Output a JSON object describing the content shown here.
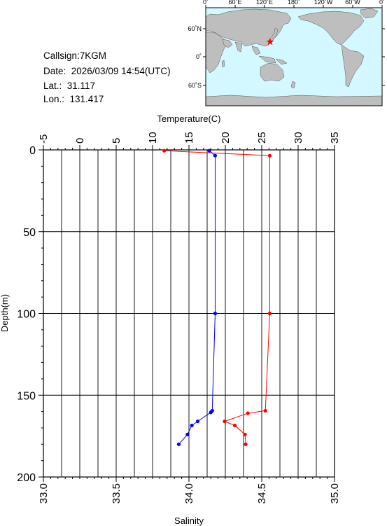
{
  "info": {
    "callsign": "Callsign:7KGM",
    "date": "Date:  2026/03/09 14:54(UTC)",
    "lat": "Lat.:  31.117",
    "lon": "Lon.:  131.417"
  },
  "map": {
    "top_ticks": [
      "0˚",
      "60˚E",
      "120˚E",
      "180˚",
      "120˚W",
      "60˚W",
      "0˚"
    ],
    "lat_ticks": [
      "60˚N",
      "0˚",
      "60˚S"
    ],
    "station_marker": "red-star",
    "colors": {
      "ocean": "#d4f8ff",
      "land": "#bebebe",
      "marker": "#ff0000"
    }
  },
  "chart_data": {
    "type": "line",
    "title": "",
    "ylabel": "Depth(m)",
    "ylim": [
      0,
      200
    ],
    "y_inverted": true,
    "yticks": [
      "0",
      "50",
      "100",
      "150",
      "200"
    ],
    "x_top": {
      "label": "Temperature(C)",
      "lim": [
        -5,
        35
      ],
      "ticks": [
        "-5",
        "0",
        "5",
        "10",
        "15",
        "20",
        "25",
        "30",
        "35"
      ]
    },
    "x_bottom": {
      "label": "Salinity",
      "lim": [
        33.0,
        35.0
      ],
      "ticks": [
        "33.0",
        "33.5",
        "34.0",
        "34.5",
        "35.0"
      ]
    },
    "grid": true,
    "series": [
      {
        "axis": "temperature",
        "color": "#ff0000",
        "points": [
          {
            "x": 11.6,
            "y": 0.5
          },
          {
            "x": 26.1,
            "y": 3.5
          },
          {
            "x": 26.1,
            "y": 100
          },
          {
            "x": 25.5,
            "y": 159.5
          },
          {
            "x": 23.1,
            "y": 161
          },
          {
            "x": 19.9,
            "y": 166
          },
          {
            "x": 21.3,
            "y": 168.5
          },
          {
            "x": 22.7,
            "y": 174
          },
          {
            "x": 22.8,
            "y": 180
          }
        ]
      },
      {
        "axis": "salinity",
        "color": "#0000ff",
        "points": [
          {
            "x": 34.14,
            "y": 0.5
          },
          {
            "x": 34.18,
            "y": 3.5
          },
          {
            "x": 34.18,
            "y": 100
          },
          {
            "x": 34.16,
            "y": 159.5
          },
          {
            "x": 34.15,
            "y": 160.5
          },
          {
            "x": 34.06,
            "y": 166
          },
          {
            "x": 34.02,
            "y": 168.5
          },
          {
            "x": 33.99,
            "y": 174
          },
          {
            "x": 33.93,
            "y": 180
          }
        ]
      }
    ]
  }
}
